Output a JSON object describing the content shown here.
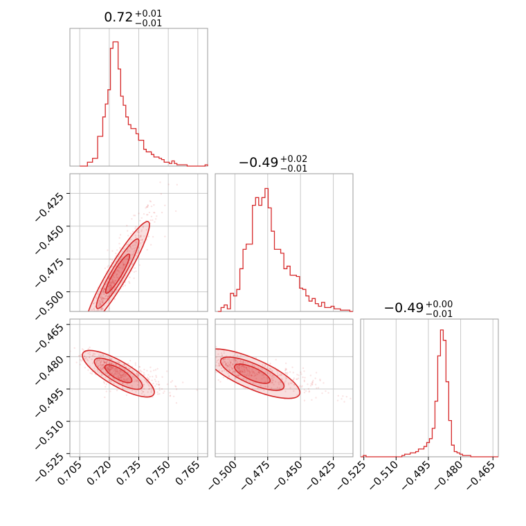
{
  "chart_data": {
    "type": "corner",
    "color": "#d62728",
    "grid": true,
    "parameters": [
      {
        "title": "0.72",
        "title_upper": "+0.01",
        "title_lower": "−0.01",
        "range": [
          0.7,
          0.77
        ],
        "ticks": [
          0.705,
          0.72,
          0.735,
          0.75,
          0.765
        ],
        "tick_labels": [
          "0.705",
          "0.720",
          "0.735",
          "0.750",
          "0.765"
        ],
        "hist_edges_range": [
          0.705,
          0.77
        ],
        "hist_values": [
          0,
          0,
          0,
          0.03,
          0.03,
          0.06,
          0.06,
          0.23,
          0.23,
          0.38,
          0.48,
          0.59,
          0.91,
          0.96,
          0.96,
          0.75,
          0.54,
          0.47,
          0.38,
          0.32,
          0.29,
          0.29,
          0.25,
          0.2,
          0.2,
          0.13,
          0.11,
          0.11,
          0.09,
          0.07,
          0.07,
          0.06,
          0.05,
          0.03,
          0.03,
          0.02,
          0.04,
          0.02,
          0.01,
          0.01,
          0.01,
          0.01,
          0,
          0,
          0,
          0,
          0,
          0,
          0,
          0.01
        ],
        "median": 0.72
      },
      {
        "title": "−0.49",
        "title_upper": "+0.02",
        "title_lower": "−0.01",
        "range": [
          -0.515,
          -0.41
        ],
        "ticks": [
          -0.5,
          -0.475,
          -0.45,
          -0.425
        ],
        "tick_labels": [
          "−0.500",
          "−0.475",
          "−0.450",
          "−0.425"
        ],
        "hist_edges_range": [
          -0.513,
          -0.41
        ],
        "hist_values": [
          0,
          0.03,
          0.05,
          0.02,
          0.14,
          0.12,
          0.17,
          0.33,
          0.48,
          0.52,
          0.52,
          0.82,
          0.88,
          0.82,
          0.88,
          0.95,
          0.8,
          0.62,
          0.48,
          0.48,
          0.45,
          0.33,
          0.35,
          0.28,
          0.28,
          0.27,
          0.18,
          0.17,
          0.12,
          0.08,
          0.1,
          0.06,
          0.04,
          0.07,
          0.03,
          0.03,
          0.04,
          0.02,
          0.02,
          0.01,
          0.01,
          0.01,
          0
        ],
        "median": -0.49
      },
      {
        "title": "−0.49",
        "title_upper": "+0.00",
        "title_lower": "−0.01",
        "range": [
          -0.5265,
          -0.4625
        ],
        "ticks": [
          -0.525,
          -0.51,
          -0.495,
          -0.48,
          -0.465
        ],
        "tick_labels": [
          "−0.525",
          "−0.510",
          "−0.495",
          "−0.480",
          "−0.465"
        ],
        "hist_edges_range": [
          -0.5265,
          -0.4625
        ],
        "hist_values": [
          0,
          0.01,
          0,
          0,
          0,
          0,
          0,
          0,
          0,
          0,
          0,
          0,
          0,
          0,
          0,
          0.01,
          0.02,
          0.02,
          0.03,
          0.03,
          0.04,
          0.06,
          0.06,
          0.08,
          0.11,
          0.14,
          0.22,
          0.43,
          0.78,
          0.98,
          0.9,
          0.58,
          0.28,
          0.09,
          0.04,
          0.03,
          0.02,
          0.01,
          0.01,
          0.01,
          0,
          0,
          0,
          0,
          0,
          0,
          0,
          0,
          0,
          0
        ],
        "median": -0.487
      }
    ],
    "correlations": [
      {
        "pair": [
          0,
          1
        ],
        "slope_sign": "positive"
      },
      {
        "pair": [
          0,
          2
        ],
        "slope_sign": "negative"
      },
      {
        "pair": [
          1,
          2
        ],
        "slope_sign": "negative"
      }
    ]
  }
}
